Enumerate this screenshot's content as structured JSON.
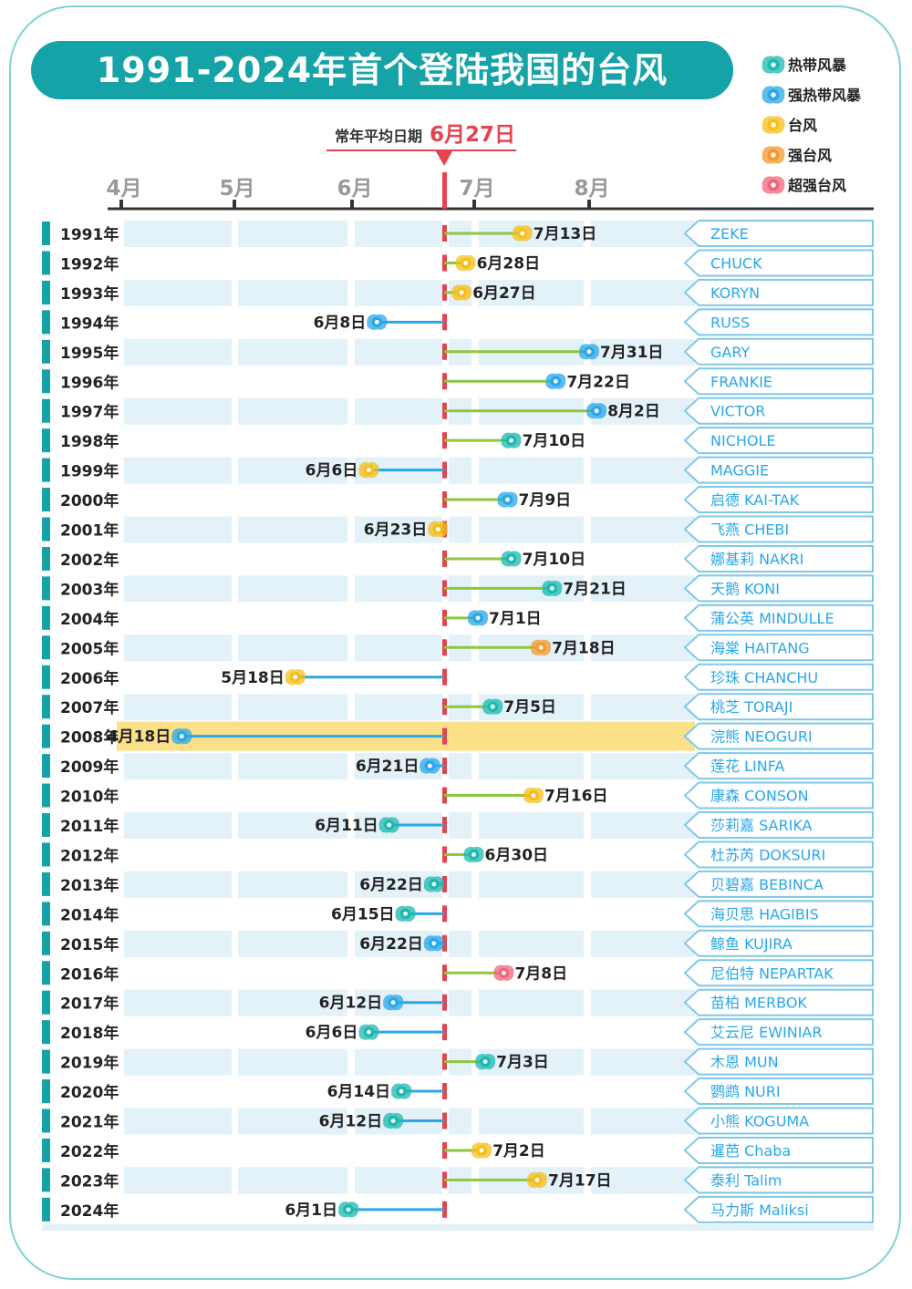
{
  "title": "1991-2024年首个登陆我国的台风",
  "avg_label": "常年平均日期",
  "avg_date": "6月27日",
  "month_labels": [
    "4月",
    "5月",
    "6月",
    "7月",
    "8月"
  ],
  "legend": [
    {
      "key": "td",
      "label": "热带风暴",
      "color": "#1cb8b0"
    },
    {
      "key": "sts",
      "label": "强热带风暴",
      "color": "#2aa7e8"
    },
    {
      "key": "ty",
      "label": "台风",
      "color": "#f6be1a"
    },
    {
      "key": "sty",
      "label": "强台风",
      "color": "#f29a2e"
    },
    {
      "key": "super",
      "label": "超强台风",
      "color": "#f0657a"
    }
  ],
  "colors": {
    "teal": "#15a3a7",
    "avg_line": "#e4434f",
    "later_line": "#8dc63f",
    "earlier_line": "#2aa7e8",
    "highlight": "#fbe08a",
    "row_band": "#e3f1f8",
    "name_text": "#2aa7e8"
  },
  "chart_data": {
    "type": "timeline",
    "title": "1991-2024年首个登陆我国的台风",
    "average": "6月27日",
    "highlight_year": "2008年",
    "rows": [
      {
        "year": "1991年",
        "date": "7月13日",
        "month": 7,
        "day": 13,
        "type": "ty",
        "name": "ZEKE"
      },
      {
        "year": "1992年",
        "date": "6月28日",
        "month": 6,
        "day": 28,
        "type": "ty",
        "name": "CHUCK"
      },
      {
        "year": "1993年",
        "date": "6月27日",
        "month": 6,
        "day": 27,
        "type": "ty",
        "name": "KORYN"
      },
      {
        "year": "1994年",
        "date": "6月8日",
        "month": 6,
        "day": 8,
        "type": "sts",
        "name": "RUSS"
      },
      {
        "year": "1995年",
        "date": "7月31日",
        "month": 7,
        "day": 31,
        "type": "sts",
        "name": "GARY"
      },
      {
        "year": "1996年",
        "date": "7月22日",
        "month": 7,
        "day": 22,
        "type": "sts",
        "name": "FRANKIE"
      },
      {
        "year": "1997年",
        "date": "8月2日",
        "month": 8,
        "day": 2,
        "type": "sts",
        "name": "VICTOR"
      },
      {
        "year": "1998年",
        "date": "7月10日",
        "month": 7,
        "day": 10,
        "type": "td",
        "name": "NICHOLE"
      },
      {
        "year": "1999年",
        "date": "6月6日",
        "month": 6,
        "day": 6,
        "type": "ty",
        "name": "MAGGIE"
      },
      {
        "year": "2000年",
        "date": "7月9日",
        "month": 7,
        "day": 9,
        "type": "sts",
        "name": "启德 KAI-TAK"
      },
      {
        "year": "2001年",
        "date": "6月23日",
        "month": 6,
        "day": 23,
        "type": "ty",
        "name": "飞燕 CHEBI"
      },
      {
        "year": "2002年",
        "date": "7月10日",
        "month": 7,
        "day": 10,
        "type": "td",
        "name": "娜基莉 NAKRI"
      },
      {
        "year": "2003年",
        "date": "7月21日",
        "month": 7,
        "day": 21,
        "type": "td",
        "name": "天鹅 KONI"
      },
      {
        "year": "2004年",
        "date": "7月1日",
        "month": 7,
        "day": 1,
        "type": "sts",
        "name": "蒲公英 MINDULLE"
      },
      {
        "year": "2005年",
        "date": "7月18日",
        "month": 7,
        "day": 18,
        "type": "sty",
        "name": "海棠 HAITANG"
      },
      {
        "year": "2006年",
        "date": "5月18日",
        "month": 5,
        "day": 18,
        "type": "ty",
        "name": "珍珠 CHANCHU"
      },
      {
        "year": "2007年",
        "date": "7月5日",
        "month": 7,
        "day": 5,
        "type": "td",
        "name": "桃芝 TORAJI"
      },
      {
        "year": "2008年",
        "date": "4月18日",
        "month": 4,
        "day": 18,
        "type": "sts",
        "name": "浣熊 NEOGURI"
      },
      {
        "year": "2009年",
        "date": "6月21日",
        "month": 6,
        "day": 21,
        "type": "sts",
        "name": "莲花 LINFA"
      },
      {
        "year": "2010年",
        "date": "7月16日",
        "month": 7,
        "day": 16,
        "type": "ty",
        "name": "康森 CONSON"
      },
      {
        "year": "2011年",
        "date": "6月11日",
        "month": 6,
        "day": 11,
        "type": "td",
        "name": "莎莉嘉 SARIKA"
      },
      {
        "year": "2012年",
        "date": "6月30日",
        "month": 6,
        "day": 30,
        "type": "td",
        "name": "杜苏芮 DOKSURI"
      },
      {
        "year": "2013年",
        "date": "6月22日",
        "month": 6,
        "day": 22,
        "type": "td",
        "name": "贝碧嘉 BEBINCA"
      },
      {
        "year": "2014年",
        "date": "6月15日",
        "month": 6,
        "day": 15,
        "type": "td",
        "name": "海贝思 HAGIBIS"
      },
      {
        "year": "2015年",
        "date": "6月22日",
        "month": 6,
        "day": 22,
        "type": "sts",
        "name": "鲸鱼 KUJIRA"
      },
      {
        "year": "2016年",
        "date": "7月8日",
        "month": 7,
        "day": 8,
        "type": "super",
        "name": "尼伯特 NEPARTAK"
      },
      {
        "year": "2017年",
        "date": "6月12日",
        "month": 6,
        "day": 12,
        "type": "sts",
        "name": "苗柏 MERBOK"
      },
      {
        "year": "2018年",
        "date": "6月6日",
        "month": 6,
        "day": 6,
        "type": "td",
        "name": "艾云尼 EWINIAR"
      },
      {
        "year": "2019年",
        "date": "7月3日",
        "month": 7,
        "day": 3,
        "type": "td",
        "name": "木恩 MUN"
      },
      {
        "year": "2020年",
        "date": "6月14日",
        "month": 6,
        "day": 14,
        "type": "td",
        "name": "鹦鹉 NURI"
      },
      {
        "year": "2021年",
        "date": "6月12日",
        "month": 6,
        "day": 12,
        "type": "td",
        "name": "小熊 KOGUMA"
      },
      {
        "year": "2022年",
        "date": "7月2日",
        "month": 7,
        "day": 2,
        "type": "ty",
        "name": "暹芭 Chaba"
      },
      {
        "year": "2023年",
        "date": "7月17日",
        "month": 7,
        "day": 17,
        "type": "ty",
        "name": "泰利 Talim"
      },
      {
        "year": "2024年",
        "date": "6月1日",
        "month": 6,
        "day": 1,
        "type": "td",
        "name": "马力斯 Maliksi"
      }
    ]
  }
}
